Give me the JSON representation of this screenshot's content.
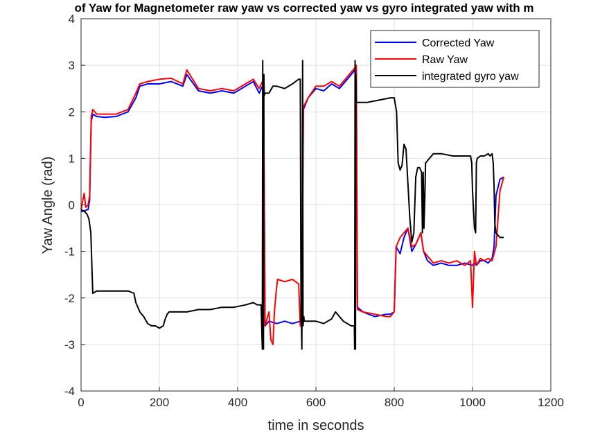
{
  "chart_data": {
    "type": "line",
    "title": "of Yaw for Magnetometer raw yaw vs corrected yaw vs gyro integrated yaw with m",
    "xlabel": "time in seconds",
    "ylabel": "Yaw Angle (rad)",
    "xlim": [
      0,
      1200
    ],
    "ylim": [
      -4,
      4
    ],
    "xticks": [
      0,
      200,
      400,
      600,
      800,
      1000,
      1200
    ],
    "yticks": [
      -4,
      -3,
      -2,
      -1,
      0,
      1,
      2,
      3,
      4
    ],
    "grid": true,
    "legend_position": "top-right",
    "series": [
      {
        "name": "Corrected Yaw",
        "color": "#0000ff",
        "x": [
          0,
          10,
          18,
          22,
          26,
          30,
          40,
          60,
          90,
          120,
          140,
          150,
          170,
          200,
          230,
          260,
          270,
          300,
          330,
          360,
          390,
          420,
          440,
          455,
          466,
          470,
          480,
          500,
          520,
          540,
          560,
          564,
          568,
          580,
          600,
          620,
          640,
          660,
          680,
          695,
          700,
          703,
          706,
          720,
          750,
          780,
          790,
          800,
          805,
          815,
          825,
          835,
          845,
          855,
          868,
          875,
          885,
          900,
          920,
          940,
          960,
          980,
          1000,
          1005,
          1010,
          1020,
          1030,
          1040,
          1050,
          1055,
          1060,
          1070,
          1080
        ],
        "y": [
          -0.15,
          -0.12,
          -0.1,
          0.1,
          1.8,
          1.95,
          1.9,
          1.88,
          1.9,
          2.0,
          2.3,
          2.55,
          2.6,
          2.6,
          2.65,
          2.55,
          2.8,
          2.45,
          2.4,
          2.45,
          2.4,
          2.55,
          2.65,
          2.4,
          2.6,
          -2.6,
          -2.5,
          -2.55,
          -2.5,
          -2.55,
          -2.5,
          -2.4,
          2.05,
          2.3,
          2.5,
          2.45,
          2.6,
          2.5,
          2.7,
          2.85,
          2.9,
          2.95,
          -2.2,
          -2.3,
          -2.4,
          -2.35,
          -2.35,
          -2.3,
          -0.9,
          -1.05,
          -0.7,
          -0.5,
          -1.0,
          -0.85,
          -0.6,
          -1.0,
          -1.2,
          -1.3,
          -1.25,
          -1.3,
          -1.3,
          -1.25,
          -1.3,
          -1.25,
          -1.3,
          -1.2,
          -1.2,
          -1.25,
          -1.15,
          -0.9,
          0.2,
          0.55,
          0.6
        ]
      },
      {
        "name": "Raw Yaw",
        "color": "#ff0000",
        "x": [
          0,
          8,
          12,
          18,
          22,
          26,
          30,
          40,
          60,
          90,
          120,
          140,
          150,
          170,
          200,
          230,
          260,
          270,
          300,
          330,
          360,
          390,
          420,
          440,
          455,
          466,
          470,
          480,
          485,
          490,
          494,
          498,
          502,
          520,
          540,
          556,
          560,
          564,
          568,
          580,
          600,
          620,
          640,
          660,
          680,
          695,
          700,
          703,
          706,
          720,
          750,
          780,
          790,
          800,
          805,
          815,
          825,
          835,
          845,
          855,
          868,
          875,
          885,
          900,
          920,
          940,
          960,
          980,
          995,
          1000,
          1005,
          1010,
          1020,
          1030,
          1040,
          1050,
          1055,
          1060,
          1070,
          1080
        ],
        "y": [
          -0.1,
          0.25,
          -0.05,
          0.0,
          0.2,
          1.9,
          2.05,
          1.95,
          1.95,
          1.95,
          2.05,
          2.4,
          2.6,
          2.65,
          2.7,
          2.72,
          2.6,
          2.9,
          2.5,
          2.45,
          2.5,
          2.45,
          2.6,
          2.7,
          2.5,
          2.7,
          -2.6,
          -2.3,
          -2.9,
          -3.0,
          -2.3,
          -1.9,
          -1.6,
          -1.65,
          -1.6,
          -1.7,
          -2.6,
          -2.5,
          2.1,
          2.3,
          2.55,
          2.55,
          2.65,
          2.55,
          2.75,
          2.9,
          2.95,
          3.0,
          -2.25,
          -2.3,
          -2.35,
          -2.4,
          -2.4,
          -2.3,
          -0.9,
          -0.7,
          -0.6,
          -0.5,
          -0.9,
          -0.85,
          -0.6,
          -1.0,
          -1.1,
          -1.25,
          -1.2,
          -1.25,
          -1.2,
          -1.3,
          -1.2,
          -2.2,
          -1.0,
          -1.3,
          -1.15,
          -1.2,
          -1.15,
          -1.2,
          -1.05,
          -0.9,
          0.3,
          0.6
        ]
      },
      {
        "name": "integrated gyro yaw",
        "color": "#000000",
        "x": [
          0,
          10,
          15,
          20,
          25,
          30,
          40,
          60,
          90,
          120,
          135,
          140,
          150,
          160,
          170,
          180,
          190,
          200,
          210,
          215,
          220,
          225,
          240,
          270,
          300,
          330,
          360,
          390,
          420,
          440,
          450,
          460,
          463,
          464,
          466,
          467,
          468,
          470,
          480,
          490,
          500,
          520,
          540,
          556,
          560,
          562,
          563,
          564,
          566,
          567,
          569,
          570,
          580,
          600,
          620,
          640,
          650,
          660,
          670,
          680,
          690,
          698,
          699,
          700,
          701,
          702,
          703,
          704,
          706,
          710,
          730,
          760,
          790,
          800,
          806,
          810,
          815,
          820,
          825,
          830,
          840,
          845,
          850,
          855,
          860,
          865,
          870,
          872,
          874,
          876,
          878,
          880,
          890,
          900,
          920,
          950,
          980,
          990,
          995,
          998,
          1000,
          1005,
          1008,
          1010,
          1012,
          1020,
          1030,
          1040,
          1045,
          1050,
          1053,
          1055,
          1057,
          1060,
          1065,
          1070,
          1080
        ],
        "y": [
          -0.1,
          -0.15,
          -0.2,
          -0.3,
          -0.6,
          -1.9,
          -1.85,
          -1.85,
          -1.85,
          -1.85,
          -1.9,
          -2.1,
          -2.3,
          -2.4,
          -2.55,
          -2.6,
          -2.6,
          -2.65,
          -2.6,
          -2.45,
          -2.35,
          -2.3,
          -2.3,
          -2.3,
          -2.25,
          -2.25,
          -2.2,
          -2.2,
          -2.15,
          -2.1,
          -2.15,
          -2.15,
          -3.1,
          3.1,
          -3.1,
          2.8,
          2.35,
          2.4,
          2.4,
          2.55,
          2.55,
          2.5,
          2.6,
          2.7,
          2.7,
          -2.5,
          -2.6,
          -3.1,
          3.1,
          -2.6,
          -2.4,
          -2.5,
          -2.5,
          -2.5,
          -2.55,
          -2.45,
          -2.3,
          -2.4,
          -2.5,
          -2.55,
          -2.6,
          -2.6,
          -3.1,
          3.1,
          -3.1,
          2.8,
          2.2,
          2.2,
          2.2,
          2.2,
          2.2,
          2.25,
          2.3,
          2.3,
          2.0,
          0.9,
          0.75,
          0.85,
          1.3,
          1.2,
          -0.3,
          -0.8,
          -0.6,
          0.6,
          0.8,
          0.8,
          0.7,
          -0.6,
          0.7,
          -0.5,
          0.1,
          0.9,
          1.0,
          1.1,
          1.1,
          1.05,
          1.05,
          1.05,
          1.05,
          0.9,
          0.3,
          -0.5,
          -0.6,
          0.9,
          1.0,
          1.05,
          1.05,
          1.1,
          1.05,
          1.1,
          0.9,
          0.4,
          -0.4,
          -0.6,
          -0.65,
          -0.7,
          -0.7
        ]
      }
    ]
  }
}
